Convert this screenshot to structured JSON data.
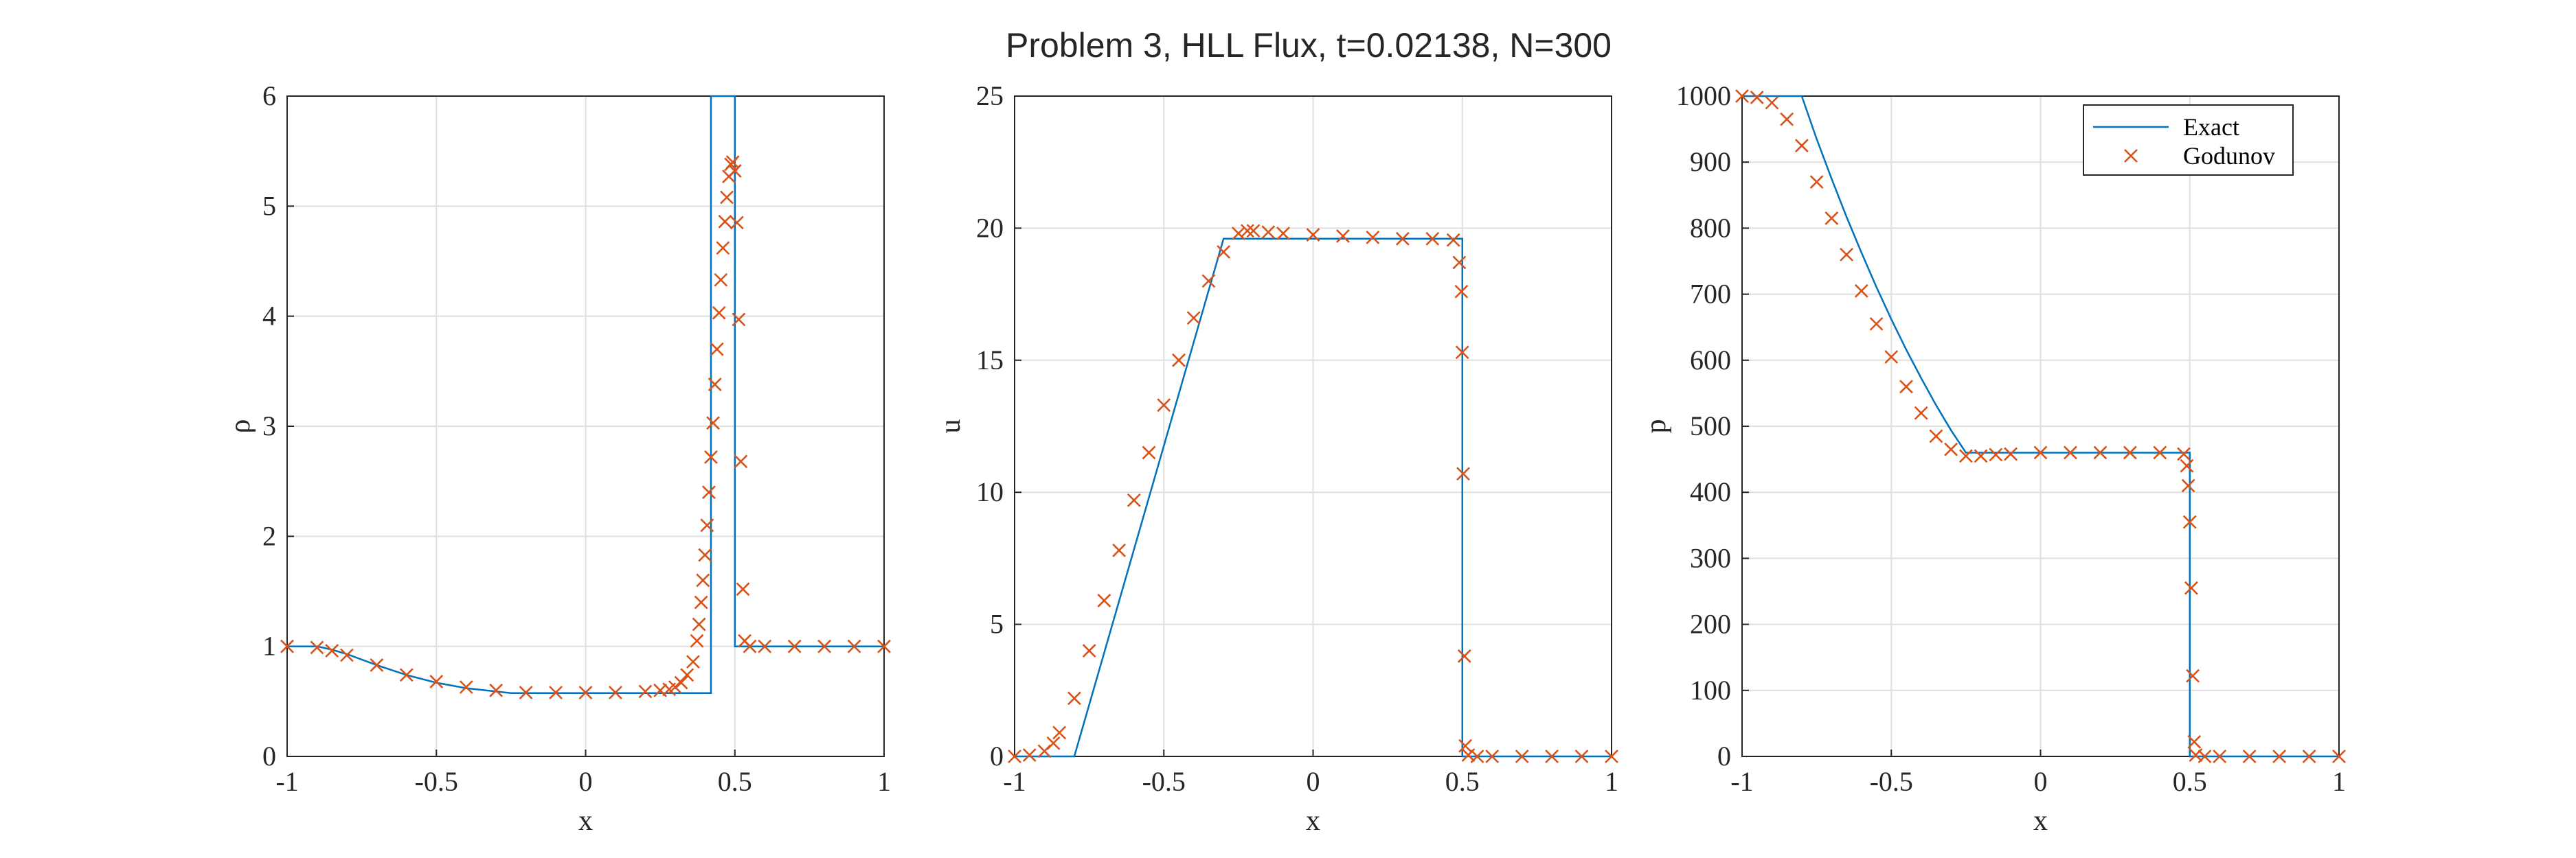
{
  "figure": {
    "title": "Problem 3, HLL Flux, t=0.02138, N=300"
  },
  "colors": {
    "exact": "#0072BD",
    "godunov": "#D95319",
    "grid": "#DFDFDF",
    "axis": "#262626"
  },
  "legend": {
    "entries": [
      "Exact",
      "Godunov"
    ],
    "placement": "top-right of third panel"
  },
  "chart_data": [
    {
      "type": "line",
      "xlabel": "x",
      "ylabel": "ρ",
      "xlim": [
        -1,
        1
      ],
      "ylim": [
        0,
        6
      ],
      "xticks": [
        "-1",
        "-0.5",
        "0",
        "0.5",
        "1"
      ],
      "yticks": [
        "0",
        "1",
        "2",
        "3",
        "4",
        "5",
        "6"
      ],
      "grid": true,
      "series": [
        {
          "name": "Exact",
          "style": "line",
          "x": [
            -1,
            -0.9,
            -0.85,
            -0.8,
            -0.7,
            -0.6,
            -0.5,
            -0.4,
            -0.3,
            -0.25,
            -0.2,
            0.3,
            0.42,
            0.42,
            0.5,
            0.5,
            0.52,
            0.52,
            1.0
          ],
          "y": [
            1.0,
            1.0,
            0.97,
            0.93,
            0.83,
            0.74,
            0.67,
            0.62,
            0.59,
            0.575,
            0.575,
            0.575,
            0.575,
            6.0,
            6.0,
            1.0,
            1.0,
            1.0,
            1.0
          ]
        },
        {
          "name": "Godunov",
          "style": "markers",
          "x": [
            -1.0,
            -0.9,
            -0.85,
            -0.8,
            -0.7,
            -0.6,
            -0.5,
            -0.4,
            -0.3,
            -0.2,
            -0.1,
            0.0,
            0.1,
            0.2,
            0.25,
            0.28,
            0.3,
            0.32,
            0.34,
            0.36,
            0.373,
            0.38,
            0.387,
            0.393,
            0.4,
            0.407,
            0.413,
            0.42,
            0.427,
            0.433,
            0.44,
            0.447,
            0.453,
            0.46,
            0.467,
            0.473,
            0.48,
            0.487,
            0.493,
            0.5,
            0.507,
            0.513,
            0.52,
            0.527,
            0.533,
            0.55,
            0.6,
            0.7,
            0.8,
            0.9,
            1.0
          ],
          "y": [
            1.0,
            0.99,
            0.96,
            0.92,
            0.83,
            0.74,
            0.68,
            0.63,
            0.6,
            0.58,
            0.58,
            0.58,
            0.58,
            0.59,
            0.6,
            0.61,
            0.63,
            0.67,
            0.74,
            0.86,
            1.05,
            1.2,
            1.4,
            1.6,
            1.83,
            2.1,
            2.4,
            2.72,
            3.03,
            3.38,
            3.7,
            4.03,
            4.33,
            4.62,
            4.86,
            5.08,
            5.27,
            5.38,
            5.4,
            5.32,
            4.85,
            3.97,
            2.68,
            1.52,
            1.05,
            1.0,
            1.0,
            1.0,
            1.0,
            1.0,
            1.0
          ]
        }
      ]
    },
    {
      "type": "line",
      "xlabel": "x",
      "ylabel": "u",
      "xlim": [
        -1,
        1
      ],
      "ylim": [
        0,
        25
      ],
      "xticks": [
        "-1",
        "-0.5",
        "0",
        "0.5",
        "1"
      ],
      "yticks": [
        "0",
        "5",
        "10",
        "15",
        "20",
        "25"
      ],
      "grid": true,
      "series": [
        {
          "name": "Exact",
          "style": "line",
          "x": [
            -1,
            -0.8,
            -0.3,
            0.5,
            0.5,
            1.0
          ],
          "y": [
            0,
            0,
            19.6,
            19.6,
            0,
            0
          ]
        },
        {
          "name": "Godunov",
          "style": "markers",
          "x": [
            -1.0,
            -0.95,
            -0.9,
            -0.87,
            -0.85,
            -0.8,
            -0.75,
            -0.7,
            -0.65,
            -0.6,
            -0.55,
            -0.5,
            -0.45,
            -0.4,
            -0.35,
            -0.3,
            -0.25,
            -0.22,
            -0.2,
            -0.15,
            -0.1,
            0.0,
            0.1,
            0.2,
            0.3,
            0.4,
            0.47,
            0.49,
            0.497,
            0.5,
            0.503,
            0.507,
            0.51,
            0.52,
            0.55,
            0.6,
            0.7,
            0.8,
            0.9,
            1.0
          ],
          "y": [
            0.0,
            0.05,
            0.2,
            0.5,
            0.9,
            2.2,
            4.0,
            5.9,
            7.8,
            9.7,
            11.5,
            13.3,
            15.0,
            16.6,
            18.0,
            19.1,
            19.8,
            19.9,
            19.9,
            19.85,
            19.8,
            19.75,
            19.7,
            19.65,
            19.6,
            19.6,
            19.55,
            18.7,
            17.6,
            15.3,
            10.7,
            3.8,
            0.4,
            0.05,
            0.0,
            0.0,
            0.0,
            0.0,
            0.0,
            0.0
          ]
        }
      ]
    },
    {
      "type": "line",
      "xlabel": "x",
      "ylabel": "p",
      "xlim": [
        -1,
        1
      ],
      "ylim": [
        0,
        1000
      ],
      "xticks": [
        "-1",
        "-0.5",
        "0",
        "0.5",
        "1"
      ],
      "yticks": [
        "0",
        "100",
        "200",
        "300",
        "400",
        "500",
        "600",
        "700",
        "800",
        "900",
        "1000"
      ],
      "grid": true,
      "series": [
        {
          "name": "Exact",
          "style": "line",
          "x": [
            -1,
            -0.8,
            -0.75,
            -0.7,
            -0.65,
            -0.6,
            -0.55,
            -0.5,
            -0.45,
            -0.4,
            -0.35,
            -0.3,
            -0.25,
            0.5,
            0.5,
            1.0
          ],
          "y": [
            1000,
            1000,
            935,
            875,
            817,
            763,
            711,
            662,
            616,
            573,
            532,
            494,
            460,
            460,
            0,
            0
          ]
        },
        {
          "name": "Godunov",
          "style": "markers",
          "x": [
            -1.0,
            -0.95,
            -0.9,
            -0.85,
            -0.8,
            -0.75,
            -0.7,
            -0.65,
            -0.6,
            -0.55,
            -0.5,
            -0.45,
            -0.4,
            -0.35,
            -0.3,
            -0.25,
            -0.2,
            -0.15,
            -0.1,
            0.0,
            0.1,
            0.2,
            0.3,
            0.4,
            0.48,
            0.49,
            0.495,
            0.5,
            0.505,
            0.51,
            0.515,
            0.52,
            0.55,
            0.6,
            0.7,
            0.8,
            0.9,
            1.0
          ],
          "y": [
            1000,
            998,
            990,
            965,
            925,
            870,
            815,
            760,
            705,
            655,
            605,
            560,
            520,
            485,
            465,
            455,
            455,
            457,
            458,
            460,
            460,
            460,
            460,
            460,
            458,
            440,
            410,
            355,
            255,
            122,
            22,
            2,
            0,
            0,
            0,
            0,
            0,
            0
          ]
        }
      ]
    }
  ]
}
